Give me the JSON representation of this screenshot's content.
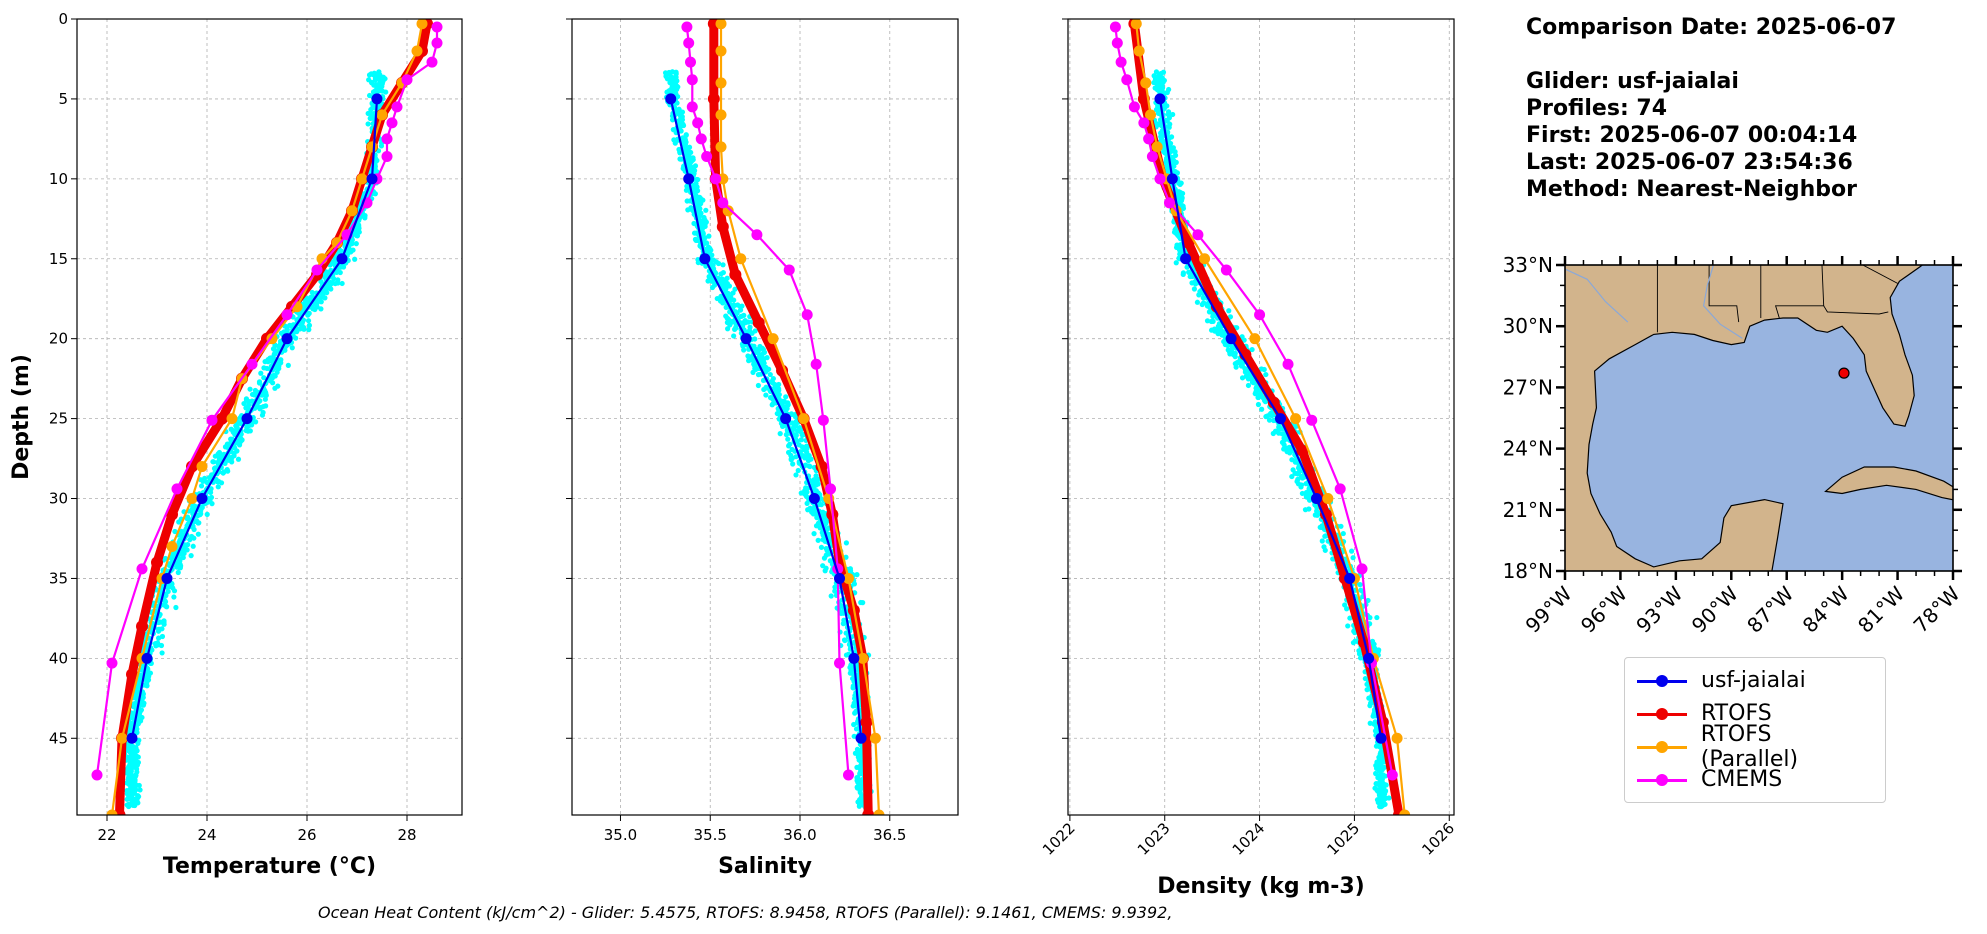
{
  "info": {
    "comparison_date": "Comparison Date: 2025-06-07",
    "glider": "Glider: usf-jaialai",
    "profiles": "Profiles: 74",
    "first": "First: 2025-06-07 00:04:14",
    "last": "Last: 2025-06-07 23:54:36",
    "method": "Method: Nearest-Neighbor"
  },
  "footer": "Ocean Heat Content (kJ/cm^2) - Glider: 5.4575,  RTOFS: 8.9458,  RTOFS (Parallel): 9.1461,  CMEMS: 9.9392,",
  "colors": {
    "glider": "#0000ee",
    "glider_scatter": "#00ffff",
    "rtofs": "#ee0000",
    "rtofs_parallel": "#ffa500",
    "cmems": "#ff00ff",
    "land": "#d2b48c",
    "ocean": "#98b4e0"
  },
  "legend": [
    {
      "label": "usf-jaialai",
      "color": "#0000ee"
    },
    {
      "label": "RTOFS",
      "color": "#ee0000"
    },
    {
      "label": "RTOFS (Parallel)",
      "color": "#ffa500"
    },
    {
      "label": "CMEMS",
      "color": "#ff00ff"
    }
  ],
  "map": {
    "lat_labels": [
      "33°N",
      "30°N",
      "27°N",
      "24°N",
      "21°N",
      "18°N"
    ],
    "lon_labels": [
      "99°W",
      "96°W",
      "93°W",
      "90°W",
      "87°W",
      "84°W",
      "81°W",
      "78°W"
    ],
    "extent": {
      "lon": [
        -99,
        -78
      ],
      "lat": [
        18,
        33
      ]
    },
    "glider_position": {
      "lon": -83.9,
      "lat": 27.7
    }
  },
  "chart_data": [
    {
      "type": "line",
      "xlabel": "Temperature (°C)",
      "ylabel": "Depth (m)",
      "xlim": [
        21.4,
        29.1
      ],
      "ylim": [
        49.8,
        0
      ],
      "xticks": [
        22,
        24,
        26,
        28
      ],
      "yticks": [
        0,
        5,
        10,
        15,
        20,
        25,
        30,
        35,
        40,
        45
      ],
      "grid": true,
      "series": [
        {
          "name": "usf-jaialai",
          "color": "#0000ee",
          "points": [
            [
              27.4,
              5
            ],
            [
              27.3,
              10
            ],
            [
              26.7,
              15
            ],
            [
              25.6,
              20
            ],
            [
              24.8,
              25
            ],
            [
              23.9,
              30
            ],
            [
              23.2,
              35
            ],
            [
              22.8,
              40
            ],
            [
              22.5,
              45
            ]
          ]
        },
        {
          "name": "RTOFS",
          "color": "#ee0000",
          "thick": true,
          "points": [
            [
              28.4,
              0.3
            ],
            [
              28.3,
              2
            ],
            [
              27.9,
              4
            ],
            [
              27.5,
              6
            ],
            [
              27.3,
              8
            ],
            [
              27.1,
              10
            ],
            [
              26.9,
              12
            ],
            [
              26.6,
              14
            ],
            [
              26.2,
              16
            ],
            [
              25.7,
              18
            ],
            [
              25.2,
              20
            ],
            [
              24.7,
              22.5
            ],
            [
              24.3,
              25
            ],
            [
              23.7,
              28
            ],
            [
              23.3,
              31
            ],
            [
              23.0,
              34
            ],
            [
              22.7,
              38
            ],
            [
              22.5,
              41
            ],
            [
              22.3,
              45
            ],
            [
              22.25,
              49.8
            ]
          ]
        },
        {
          "name": "RTOFS (Parallel)",
          "color": "#ffa500",
          "points": [
            [
              28.3,
              0.3
            ],
            [
              28.2,
              2
            ],
            [
              27.9,
              4
            ],
            [
              27.5,
              6
            ],
            [
              27.3,
              8
            ],
            [
              27.1,
              10
            ],
            [
              26.9,
              12
            ],
            [
              26.6,
              14
            ],
            [
              26.3,
              15
            ],
            [
              25.8,
              18
            ],
            [
              25.3,
              20
            ],
            [
              24.7,
              22.5
            ],
            [
              24.5,
              25
            ],
            [
              23.9,
              28
            ],
            [
              23.7,
              30
            ],
            [
              23.3,
              33
            ],
            [
              23.1,
              35
            ],
            [
              22.7,
              40
            ],
            [
              22.3,
              45
            ],
            [
              22.1,
              49.8
            ]
          ]
        },
        {
          "name": "CMEMS",
          "color": "#ff00ff",
          "points": [
            [
              28.6,
              0.5
            ],
            [
              28.6,
              1.5
            ],
            [
              28.5,
              2.7
            ],
            [
              28.0,
              3.8
            ],
            [
              27.8,
              5.5
            ],
            [
              27.7,
              6.5
            ],
            [
              27.6,
              7.5
            ],
            [
              27.6,
              8.6
            ],
            [
              27.4,
              10
            ],
            [
              27.2,
              11.5
            ],
            [
              26.8,
              13.5
            ],
            [
              26.2,
              15.7
            ],
            [
              25.6,
              18.5
            ],
            [
              24.9,
              21.6
            ],
            [
              24.1,
              25.1
            ],
            [
              23.4,
              29.4
            ],
            [
              22.7,
              34.4
            ],
            [
              22.1,
              40.3
            ],
            [
              21.8,
              47.3
            ]
          ]
        }
      ]
    },
    {
      "type": "line",
      "xlabel": "Salinity",
      "ylabel": "",
      "xlim": [
        34.73,
        36.88
      ],
      "ylim": [
        49.8,
        0
      ],
      "xticks": [
        35.0,
        35.5,
        36.0,
        36.5
      ],
      "yticks": [
        0,
        5,
        10,
        15,
        20,
        25,
        30,
        35,
        40,
        45
      ],
      "grid": true,
      "series": [
        {
          "name": "usf-jaialai",
          "color": "#0000ee",
          "points": [
            [
              35.28,
              5
            ],
            [
              35.38,
              10
            ],
            [
              35.47,
              15
            ],
            [
              35.7,
              20
            ],
            [
              35.92,
              25
            ],
            [
              36.08,
              30
            ],
            [
              36.22,
              35
            ],
            [
              36.3,
              40
            ],
            [
              36.34,
              45
            ]
          ]
        },
        {
          "name": "RTOFS",
          "color": "#ee0000",
          "thick": true,
          "points": [
            [
              35.52,
              0.3
            ],
            [
              35.52,
              5
            ],
            [
              35.53,
              10
            ],
            [
              35.57,
              13
            ],
            [
              35.64,
              16
            ],
            [
              35.77,
              19
            ],
            [
              35.9,
              22
            ],
            [
              36.02,
              25
            ],
            [
              36.12,
              28
            ],
            [
              36.18,
              31
            ],
            [
              36.22,
              34
            ],
            [
              36.3,
              37
            ],
            [
              36.35,
              40
            ],
            [
              36.37,
              44
            ],
            [
              36.38,
              49.8
            ]
          ]
        },
        {
          "name": "RTOFS (Parallel)",
          "color": "#ffa500",
          "points": [
            [
              35.56,
              0.3
            ],
            [
              35.56,
              2
            ],
            [
              35.56,
              4
            ],
            [
              35.56,
              6
            ],
            [
              35.56,
              8
            ],
            [
              35.57,
              10
            ],
            [
              35.6,
              12
            ],
            [
              35.67,
              15
            ],
            [
              35.85,
              20
            ],
            [
              36.02,
              25
            ],
            [
              36.16,
              30
            ],
            [
              36.27,
              35
            ],
            [
              36.35,
              40
            ],
            [
              36.42,
              45
            ],
            [
              36.44,
              49.8
            ]
          ]
        },
        {
          "name": "CMEMS",
          "color": "#ff00ff",
          "points": [
            [
              35.37,
              0.5
            ],
            [
              35.38,
              1.5
            ],
            [
              35.39,
              2.7
            ],
            [
              35.4,
              3.8
            ],
            [
              35.4,
              5.5
            ],
            [
              35.43,
              6.5
            ],
            [
              35.45,
              7.5
            ],
            [
              35.48,
              8.6
            ],
            [
              35.53,
              10
            ],
            [
              35.57,
              11.5
            ],
            [
              35.76,
              13.5
            ],
            [
              35.94,
              15.7
            ],
            [
              36.04,
              18.5
            ],
            [
              36.09,
              21.6
            ],
            [
              36.13,
              25.1
            ],
            [
              36.17,
              29.4
            ],
            [
              36.21,
              34.4
            ],
            [
              36.22,
              40.3
            ],
            [
              36.27,
              47.3
            ]
          ]
        }
      ]
    },
    {
      "type": "line",
      "xlabel": "Density (kg m-3)",
      "ylabel": "",
      "xlim": [
        1021.98,
        1026.05
      ],
      "ylim": [
        49.8,
        0
      ],
      "xticks": [
        1022,
        1023,
        1024,
        1025,
        1026
      ],
      "yticks": [
        0,
        5,
        10,
        15,
        20,
        25,
        30,
        35,
        40,
        45
      ],
      "grid": true,
      "series": [
        {
          "name": "usf-jaialai",
          "color": "#0000ee",
          "points": [
            [
              1022.95,
              5
            ],
            [
              1023.08,
              10
            ],
            [
              1023.22,
              15
            ],
            [
              1023.7,
              20
            ],
            [
              1024.22,
              25
            ],
            [
              1024.6,
              30
            ],
            [
              1024.95,
              35
            ],
            [
              1025.15,
              40
            ],
            [
              1025.28,
              45
            ]
          ]
        },
        {
          "name": "RTOFS",
          "color": "#ee0000",
          "thick": true,
          "points": [
            [
              1022.68,
              0.3
            ],
            [
              1022.78,
              5
            ],
            [
              1022.98,
              10
            ],
            [
              1023.25,
              14
            ],
            [
              1023.55,
              18
            ],
            [
              1023.85,
              21
            ],
            [
              1024.15,
              24
            ],
            [
              1024.45,
              27
            ],
            [
              1024.7,
              31
            ],
            [
              1024.9,
              35
            ],
            [
              1025.1,
              39
            ],
            [
              1025.3,
              44
            ],
            [
              1025.47,
              49.8
            ]
          ]
        },
        {
          "name": "RTOFS (Parallel)",
          "color": "#ffa500",
          "points": [
            [
              1022.7,
              0.3
            ],
            [
              1022.73,
              2
            ],
            [
              1022.8,
              4
            ],
            [
              1022.85,
              6
            ],
            [
              1022.92,
              8
            ],
            [
              1023.02,
              10
            ],
            [
              1023.12,
              12
            ],
            [
              1023.42,
              15
            ],
            [
              1023.95,
              20
            ],
            [
              1024.38,
              25
            ],
            [
              1024.72,
              30
            ],
            [
              1025.0,
              35
            ],
            [
              1025.2,
              40
            ],
            [
              1025.45,
              45
            ],
            [
              1025.53,
              49.8
            ]
          ]
        },
        {
          "name": "CMEMS",
          "color": "#ff00ff",
          "points": [
            [
              1022.48,
              0.5
            ],
            [
              1022.5,
              1.5
            ],
            [
              1022.54,
              2.7
            ],
            [
              1022.6,
              3.8
            ],
            [
              1022.68,
              5.5
            ],
            [
              1022.78,
              6.5
            ],
            [
              1022.83,
              7.5
            ],
            [
              1022.87,
              8.6
            ],
            [
              1022.95,
              10
            ],
            [
              1023.05,
              11.5
            ],
            [
              1023.35,
              13.5
            ],
            [
              1023.65,
              15.7
            ],
            [
              1024.0,
              18.5
            ],
            [
              1024.3,
              21.6
            ],
            [
              1024.55,
              25.1
            ],
            [
              1024.85,
              29.4
            ],
            [
              1025.08,
              34.4
            ],
            [
              1025.18,
              40.3
            ],
            [
              1025.4,
              47.3
            ]
          ]
        }
      ]
    }
  ]
}
